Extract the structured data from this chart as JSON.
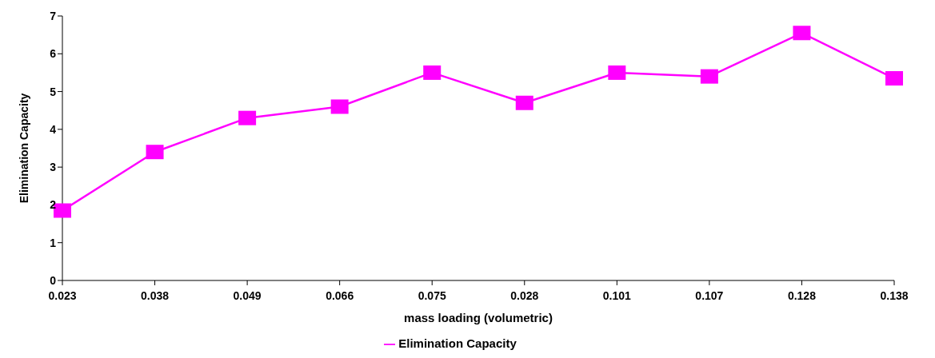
{
  "chart_data": {
    "type": "line",
    "xlabel": "mass loading (volumetric)",
    "ylabel": "Elimination Capacity",
    "categories": [
      "0.023",
      "0.038",
      "0.049",
      "0.066",
      "0.075",
      "0.028",
      "0.101",
      "0.107",
      "0.128",
      "0.138"
    ],
    "series": [
      {
        "name": "Elimination Capacity",
        "color": "#ff00ff",
        "values": [
          1.85,
          3.4,
          4.3,
          4.6,
          5.5,
          4.7,
          5.5,
          5.4,
          6.55,
          5.35
        ]
      }
    ],
    "ylim": [
      0,
      7
    ],
    "yticks": [
      0,
      1,
      2,
      3,
      4,
      5,
      6,
      7
    ],
    "grid": false,
    "legend": "bottom",
    "marker": "square",
    "line_style": "solid"
  }
}
